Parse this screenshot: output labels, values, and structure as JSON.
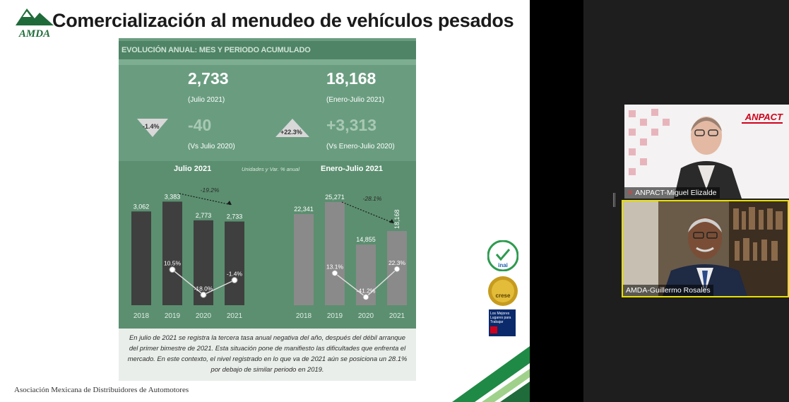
{
  "slide": {
    "title": "Comercialización al menudeo de vehículos pesados",
    "logo_text": "AMDA",
    "footer": "Asociación Mexicana de Distribuidores de Automotores"
  },
  "infographic": {
    "header": "EVOLUCIÓN ANUAL: MES Y PERIODO ACUMULADO",
    "month_value": "2,733",
    "month_period": "(Julio 2021)",
    "month_change_pct": "-1.4%",
    "month_change_abs": "-40",
    "month_compare": "(Vs Julio 2020)",
    "ytd_value": "18,168",
    "ytd_period": "(Enero-Julio 2021)",
    "ytd_change_pct": "+22.3%",
    "ytd_change_abs": "+3,313",
    "ytd_compare": "(Vs Enero-Julio 2020)",
    "chart_left_title": "Julio 2021",
    "chart_units": "Unidades y Var. % anual",
    "chart_right_title": "Enero-Julio 2021",
    "note": "En julio de 2021 se registra la tercera tasa anual negativa del año, después del débil arranque del primer bimestre de 2021. Esta situación pone de manifiesto las dificultades que enfrenta el mercado. En este contexto, el nivel registrado en lo que va de 2021 aún se posiciona un 28.1% por debajo de similar periodo en 2019."
  },
  "chart_data": [
    {
      "type": "bar",
      "title": "Julio 2021",
      "categories": [
        "2018",
        "2019",
        "2020",
        "2021"
      ],
      "values": [
        3062,
        3383,
        2773,
        2733
      ],
      "value_labels": [
        "3,062",
        "3,383",
        "2,773",
        "2,733"
      ],
      "change_pct": [
        null,
        10.5,
        -18.0,
        -1.4
      ],
      "change_labels": [
        "",
        "10.5%",
        "-18.0%",
        "-1.4%"
      ],
      "annotation": "-19.2%",
      "ylabel": "Unidades y Var. % anual"
    },
    {
      "type": "bar",
      "title": "Enero-Julio 2021",
      "categories": [
        "2018",
        "2019",
        "2020",
        "2021"
      ],
      "values": [
        22341,
        25271,
        14855,
        18168
      ],
      "value_labels": [
        "22,341",
        "25,271",
        "14,855",
        "18,168"
      ],
      "change_pct": [
        null,
        13.1,
        -41.2,
        22.3
      ],
      "change_labels": [
        "",
        "13.1%",
        "-41.2%",
        "22.3%"
      ],
      "annotation": "-28.1%"
    }
  ],
  "badges": {
    "inai": "inai",
    "crese": "crese",
    "gptw_line1": "Los Mejores",
    "gptw_line2": "Lugares para",
    "gptw_line3": "Trabajar"
  },
  "participants": [
    {
      "name": "ANPACT-Miguel Elizalde",
      "logo": "ANPACT"
    },
    {
      "name": "AMDA-Guillermo Rosales"
    }
  ],
  "colors": {
    "panel": "#5b8f70",
    "bar_dark": "#3f3f3f",
    "bar_gray": "#8a8a8a",
    "active_speaker": "#e8e000",
    "anpact_red": "#d0021b"
  }
}
